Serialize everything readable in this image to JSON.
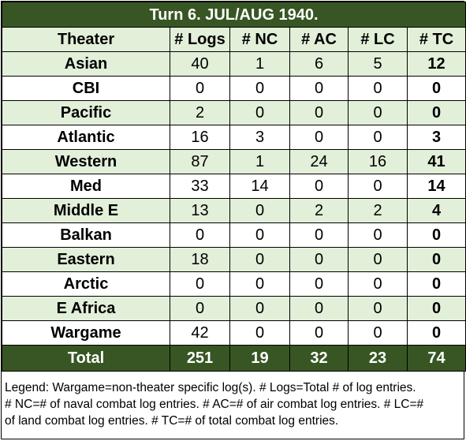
{
  "title": "Turn 6.  JUL/AUG 1940.",
  "headers": [
    "Theater",
    "# Logs",
    "# NC",
    "# AC",
    "# LC",
    "# TC"
  ],
  "rows": [
    {
      "theater": "Asian",
      "logs": "40",
      "nc": "1",
      "ac": "6",
      "lc": "5",
      "tc": "12"
    },
    {
      "theater": "CBI",
      "logs": "0",
      "nc": "0",
      "ac": "0",
      "lc": "0",
      "tc": "0"
    },
    {
      "theater": "Pacific",
      "logs": "2",
      "nc": "0",
      "ac": "0",
      "lc": "0",
      "tc": "0"
    },
    {
      "theater": "Atlantic",
      "logs": "16",
      "nc": "3",
      "ac": "0",
      "lc": "0",
      "tc": "3"
    },
    {
      "theater": "Western",
      "logs": "87",
      "nc": "1",
      "ac": "24",
      "lc": "16",
      "tc": "41"
    },
    {
      "theater": "Med",
      "logs": "33",
      "nc": "14",
      "ac": "0",
      "lc": "0",
      "tc": "14"
    },
    {
      "theater": "Middle E",
      "logs": "13",
      "nc": "0",
      "ac": "2",
      "lc": "2",
      "tc": "4"
    },
    {
      "theater": "Balkan",
      "logs": "0",
      "nc": "0",
      "ac": "0",
      "lc": "0",
      "tc": "0"
    },
    {
      "theater": "Eastern",
      "logs": "18",
      "nc": "0",
      "ac": "0",
      "lc": "0",
      "tc": "0"
    },
    {
      "theater": "Arctic",
      "logs": "0",
      "nc": "0",
      "ac": "0",
      "lc": "0",
      "tc": "0"
    },
    {
      "theater": "E Africa",
      "logs": "0",
      "nc": "0",
      "ac": "0",
      "lc": "0",
      "tc": "0"
    },
    {
      "theater": "Wargame",
      "logs": "42",
      "nc": "0",
      "ac": "0",
      "lc": "0",
      "tc": "0"
    }
  ],
  "total": {
    "theater": "Total",
    "logs": "251",
    "nc": "19",
    "ac": "32",
    "lc": "23",
    "tc": "74"
  },
  "legend": {
    "line1": "Legend:  Wargame=non-theater specific log(s).  # Logs=Total # of log entries.",
    "line2": "# NC=# of naval combat log entries.  # AC=# of air combat log entries.  # LC=#",
    "line3": "of land combat log entries.  # TC=# of total combat log entries."
  },
  "colors": {
    "dark_green": "#375623",
    "light_green": "#e2efd9"
  }
}
